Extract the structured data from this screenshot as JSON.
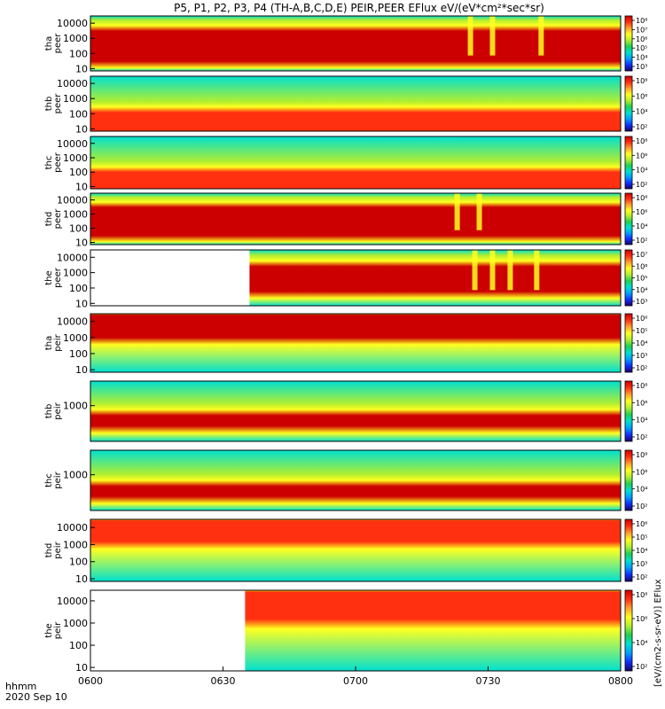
{
  "title": "P5, P1, P2, P3, P4 (TH-A,B,C,D,E) PEIR,PEER EFlux eV/(eV*cm²*sec*sr)",
  "colorbar_label": "[eV/(cm2-s-sr-eV)] EFlux",
  "xaxis": {
    "tick_labels": [
      "0600",
      "0630",
      "0700",
      "0730",
      "0800"
    ],
    "unit_label": "hhmm",
    "date_label": "2020 Sep 10"
  },
  "colors": {
    "scale": [
      "#1a0066",
      "#1030ff",
      "#00a0ff",
      "#00e0d0",
      "#20d050",
      "#b0ee30",
      "#ffff20",
      "#ffa030",
      "#ff3010",
      "#cc0000"
    ],
    "gap": "#ffffff",
    "frame": "#000000"
  },
  "chart_data": [
    {
      "type": "heatmap",
      "probe": "tha",
      "ylabel": [
        "tha",
        "peer"
      ],
      "yscale": "log",
      "ylim": [
        7,
        30000
      ],
      "ytick_labels": [
        "10000",
        "1000",
        "100",
        "10"
      ],
      "colorbar_ticks": [
        "10⁸",
        "10⁷",
        "10⁶",
        "10⁵",
        "10⁴",
        "10³"
      ],
      "data_start": "0600",
      "core_low": 30,
      "core_high": 3000,
      "peak": "very high",
      "dropouts": [
        "0726",
        "0731",
        "0742"
      ]
    },
    {
      "type": "heatmap",
      "probe": "thb",
      "ylabel": [
        "thb",
        "peer"
      ],
      "yscale": "log",
      "ylim": [
        7,
        30000
      ],
      "ytick_labels": [
        "10000",
        "1000",
        "100",
        "10"
      ],
      "colorbar_ticks": [
        "10⁸",
        "10⁶",
        "10⁴",
        "10²"
      ],
      "data_start": "0600",
      "core_low": 7,
      "core_high": 120,
      "peak": "high",
      "dropouts": []
    },
    {
      "type": "heatmap",
      "probe": "thc",
      "ylabel": [
        "thc",
        "peer"
      ],
      "yscale": "log",
      "ylim": [
        7,
        30000
      ],
      "ytick_labels": [
        "10000",
        "1000",
        "100",
        "10"
      ],
      "colorbar_ticks": [
        "10⁸",
        "10⁶",
        "10⁴",
        "10²"
      ],
      "data_start": "0600",
      "core_low": 7,
      "core_high": 100,
      "peak": "high",
      "dropouts": []
    },
    {
      "type": "heatmap",
      "probe": "thd",
      "ylabel": [
        "thd",
        "peer"
      ],
      "yscale": "log",
      "ylim": [
        7,
        30000
      ],
      "ytick_labels": [
        "10000",
        "1000",
        "100",
        "10"
      ],
      "colorbar_ticks": [
        "10⁸",
        "10⁶",
        "10⁴",
        "10²"
      ],
      "data_start": "0600",
      "core_low": 30,
      "core_high": 3000,
      "peak": "very high",
      "dropouts": [
        "0723",
        "0728"
      ]
    },
    {
      "type": "heatmap",
      "probe": "the",
      "ylabel": [
        "the",
        "peer"
      ],
      "yscale": "log",
      "ylim": [
        7,
        30000
      ],
      "ytick_labels": [
        "10000",
        "1000",
        "100",
        "10"
      ],
      "colorbar_ticks": [
        "10⁷",
        "10⁶",
        "10⁵",
        "10⁴",
        "10³"
      ],
      "data_start": "0636",
      "core_low": 60,
      "core_high": 2500,
      "peak": "very high",
      "dropouts": [
        "0727",
        "0731",
        "0735",
        "0741"
      ]
    },
    {
      "type": "heatmap",
      "probe": "tha",
      "ylabel": [
        "tha",
        "peir"
      ],
      "yscale": "log",
      "ylim": [
        7,
        30000
      ],
      "ytick_labels": [
        "10000",
        "1000",
        "100",
        "10"
      ],
      "colorbar_ticks": [
        "10⁶",
        "10⁵",
        "10⁴",
        "10³",
        "10²"
      ],
      "data_start": "0600",
      "core_low": 1000,
      "core_high": 25000,
      "peak": "very high",
      "dropouts": []
    },
    {
      "type": "heatmap",
      "probe": "thb",
      "ylabel": [
        "thb",
        "peir"
      ],
      "yscale": "log",
      "ylim": [
        7,
        30000
      ],
      "ytick_labels": [
        "1000"
      ],
      "colorbar_ticks": [
        "10⁸",
        "10⁶",
        "10⁴",
        "10²"
      ],
      "data_start": "0600",
      "core_low": 60,
      "core_high": 250,
      "peak": "very high",
      "dropouts": []
    },
    {
      "type": "heatmap",
      "probe": "thc",
      "ylabel": [
        "thc",
        "peir"
      ],
      "yscale": "log",
      "ylim": [
        7,
        30000
      ],
      "ytick_labels": [
        "1000"
      ],
      "colorbar_ticks": [
        "10⁸",
        "10⁶",
        "10⁴",
        "10²"
      ],
      "data_start": "0600",
      "core_low": 50,
      "core_high": 200,
      "peak": "very high",
      "dropouts": []
    },
    {
      "type": "heatmap",
      "probe": "thd",
      "ylabel": [
        "thd",
        "peir"
      ],
      "yscale": "log",
      "ylim": [
        7,
        30000
      ],
      "ytick_labels": [
        "10000",
        "1000",
        "100",
        "10"
      ],
      "colorbar_ticks": [
        "10⁶",
        "10⁵",
        "10⁴",
        "10³",
        "10²"
      ],
      "data_start": "0600",
      "core_low": 1500,
      "core_high": 25000,
      "peak": "high",
      "dropouts": []
    },
    {
      "type": "heatmap",
      "probe": "the",
      "ylabel": [
        "the",
        "peir"
      ],
      "yscale": "log",
      "ylim": [
        7,
        30000
      ],
      "ytick_labels": [
        "10000",
        "1000",
        "100",
        "10"
      ],
      "colorbar_ticks": [
        "10⁸",
        "10⁶",
        "10⁴",
        "10²"
      ],
      "data_start": "0635",
      "core_low": 1500,
      "core_high": 25000,
      "peak": "high",
      "dropouts": []
    }
  ]
}
